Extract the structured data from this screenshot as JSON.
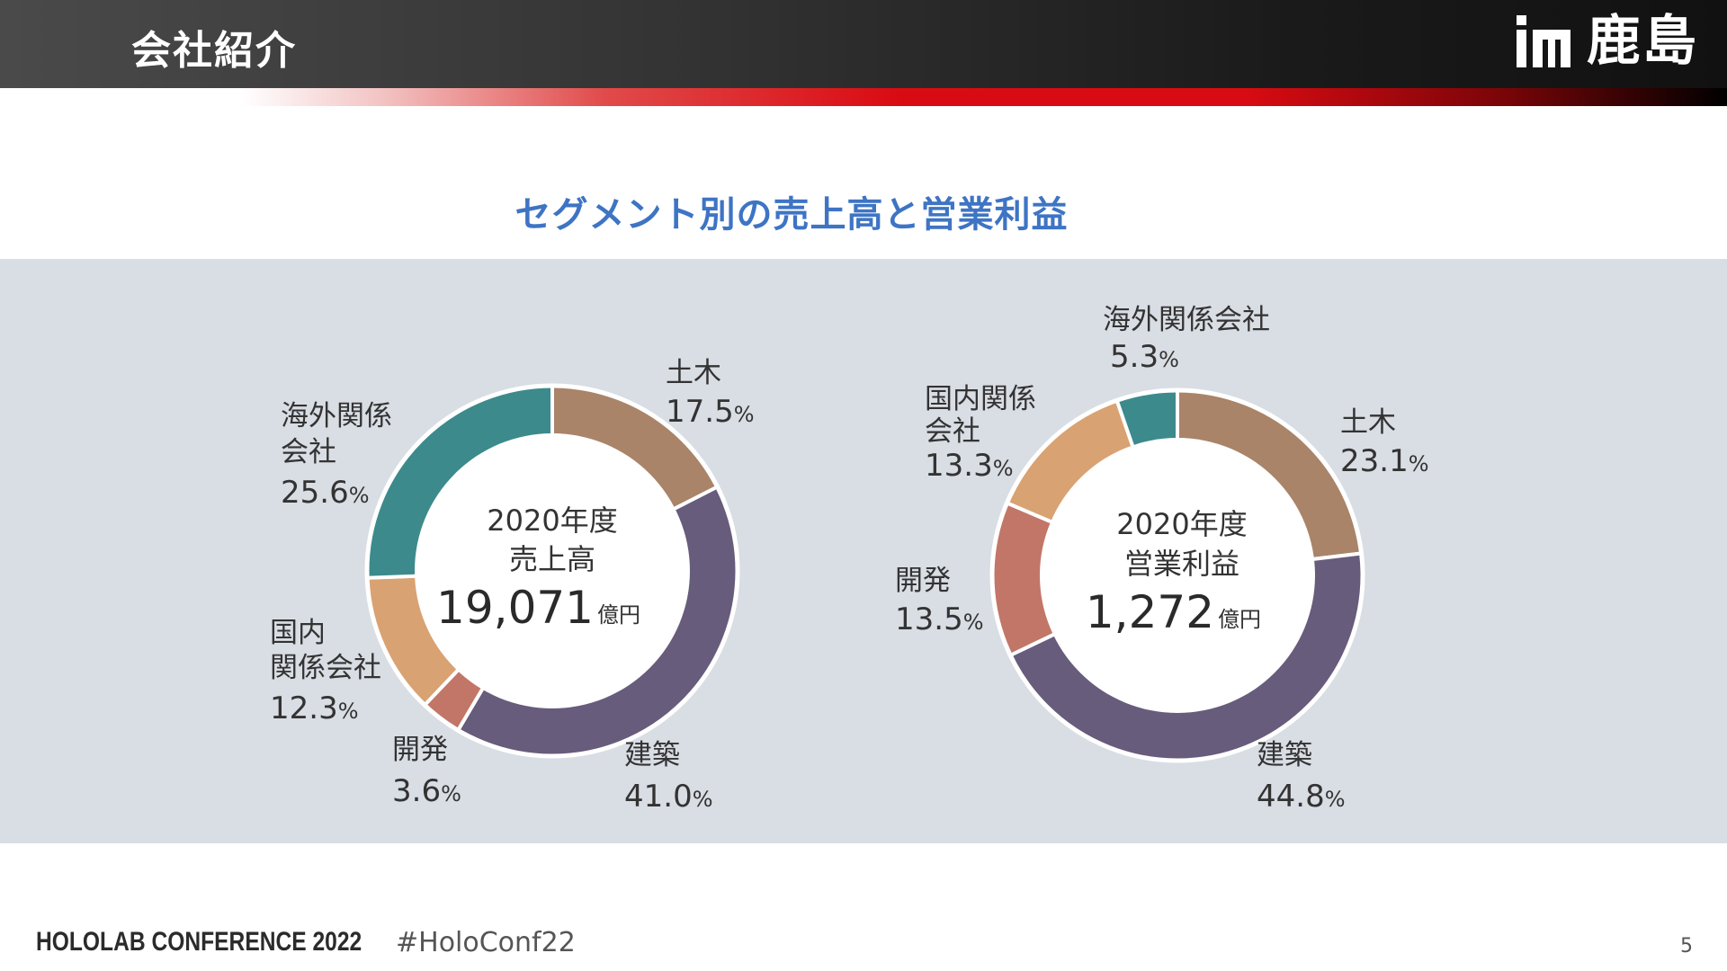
{
  "header": {
    "title": "会社紹介",
    "logo_text": "鹿島"
  },
  "section_title": "セグメント別の売上高と営業利益",
  "chart_data": [
    {
      "type": "pie",
      "donut": true,
      "center": {
        "line1": "2020年度",
        "line2": "売上高",
        "value": "19,071",
        "unit": "億円"
      },
      "segments": [
        {
          "name": "土木",
          "value": 17.5,
          "color": "#a98469"
        },
        {
          "name": "建築",
          "value": 41.0,
          "color": "#675c7b"
        },
        {
          "name": "開発",
          "value": 3.6,
          "color": "#c27668"
        },
        {
          "name": "国内関係会社",
          "value": 12.3,
          "color": "#d9a272"
        },
        {
          "name": "海外関係会社",
          "value": 25.6,
          "color": "#3c8a8c"
        }
      ],
      "labels": [
        {
          "lines": [
            "土木"
          ],
          "pct": "17.5"
        },
        {
          "lines": [
            "建築"
          ],
          "pct": "41.0"
        },
        {
          "lines": [
            "開発"
          ],
          "pct": "3.6"
        },
        {
          "lines": [
            "国内",
            "関係会社"
          ],
          "pct": "12.3"
        },
        {
          "lines": [
            "海外関係",
            "会社"
          ],
          "pct": "25.6"
        }
      ]
    },
    {
      "type": "pie",
      "donut": true,
      "center": {
        "line1": "2020年度",
        "line2": "営業利益",
        "value": "1,272",
        "unit": "億円"
      },
      "segments": [
        {
          "name": "土木",
          "value": 23.1,
          "color": "#a98469"
        },
        {
          "name": "建築",
          "value": 44.8,
          "color": "#675c7b"
        },
        {
          "name": "開発",
          "value": 13.5,
          "color": "#c27668"
        },
        {
          "name": "国内関係会社",
          "value": 13.3,
          "color": "#d9a272"
        },
        {
          "name": "海外関係会社",
          "value": 5.3,
          "color": "#3c8a8c"
        }
      ],
      "labels": [
        {
          "lines": [
            "土木"
          ],
          "pct": "23.1"
        },
        {
          "lines": [
            "建築"
          ],
          "pct": "44.8"
        },
        {
          "lines": [
            "開発"
          ],
          "pct": "13.5"
        },
        {
          "lines": [
            "国内関係",
            "会社"
          ],
          "pct": "13.3"
        },
        {
          "lines": [
            "海外関係会社"
          ],
          "pct": "5.3"
        }
      ]
    }
  ],
  "pct_unit": "%",
  "footer": {
    "conference": "HOLOLAB CONFERENCE 2022",
    "hashtag": "#HoloConf22",
    "page_number": "5"
  }
}
